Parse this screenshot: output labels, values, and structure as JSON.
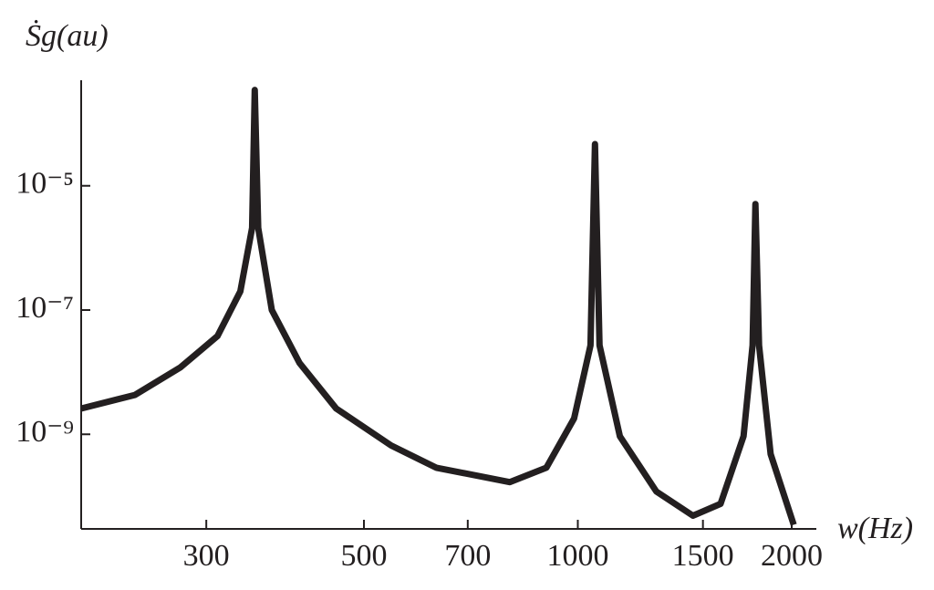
{
  "chart_data": {
    "type": "line",
    "x_label": "w(Hz)",
    "y_label": "Ṡg(au)",
    "x_scale": "log",
    "y_scale": "log",
    "xlim": [
      200,
      2000
    ],
    "ylim": [
      3e-11,
      0.0005
    ],
    "xticks": [
      300,
      500,
      700,
      1000,
      1500,
      2000
    ],
    "yticks": [
      {
        "value": 1e-09,
        "label": "10⁻⁹"
      },
      {
        "value": 1e-07,
        "label": "10⁻⁷"
      },
      {
        "value": 1e-05,
        "label": "10⁻⁵"
      }
    ],
    "series": [
      {
        "color": "#231f20",
        "x": [
          200,
          238,
          276,
          311,
          335,
          348,
          351,
          355,
          371,
          406,
          457,
          546,
          632,
          802,
          903,
          988,
          1042,
          1057,
          1073,
          1146,
          1290,
          1452,
          1588,
          1711,
          1762,
          1778,
          1799,
          1868,
          2013
        ],
        "values": [
          2.6e-09,
          4.3e-09,
          1.2e-08,
          3.8e-08,
          2e-07,
          2.1e-06,
          0.00035,
          2.1e-06,
          1e-07,
          1.4e-08,
          2.6e-09,
          6.6e-10,
          2.9e-10,
          1.7e-10,
          2.9e-10,
          1.8e-09,
          2.7e-08,
          4.7e-05,
          2.7e-08,
          9.3e-10,
          1.2e-10,
          4.9e-11,
          7.6e-11,
          9.3e-10,
          2.7e-08,
          5.1e-06,
          2.7e-08,
          4.8e-10,
          3.5e-11
        ]
      }
    ]
  }
}
